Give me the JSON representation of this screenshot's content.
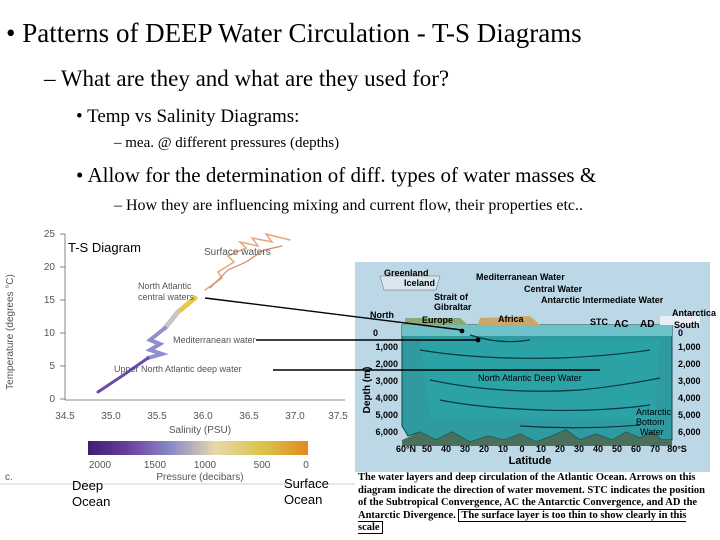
{
  "slide": {
    "title": "Patterns of DEEP Water Circulation - T-S Diagrams",
    "q": "What are they and what are they used for?",
    "b1": "Temp vs Salinity Diagrams:",
    "b1_sub": "mea. @ different pressures (depths)",
    "b2": "Allow for the determination of diff. types of water masses &",
    "b2_sub": "How they are influencing mixing and current flow, their properties etc.."
  },
  "ts": {
    "label": "T-S Diagram",
    "ylabel": "Temperature (degrees °C)",
    "xlabel": "Salinity (PSU)",
    "yticks": [
      "25",
      "20",
      "15",
      "10",
      "5",
      "0"
    ],
    "xticks": [
      "34.5",
      "35.0",
      "35.5",
      "36.0",
      "36.5",
      "37.0",
      "37.5"
    ],
    "surface": "Surface waters",
    "nacw1": "North Atlantic",
    "nacw2": "central waters",
    "med": "Mediterranean water",
    "unadw": "Upper North Atlantic deep water",
    "pticks": [
      "2000",
      "1500",
      "1000",
      "500",
      "0"
    ],
    "plabel": "Pressure (decibars)",
    "corner": "c.",
    "deep1": "Deep",
    "deep2": "Ocean",
    "surf1": "Surface",
    "surf2": "Ocean"
  },
  "sec": {
    "greenland": "Greenland",
    "iceland": "Iceland",
    "medw": "Mediterranean Water",
    "gib1": "Strait of",
    "gib2": "Gibraltar",
    "cw": "Central Water",
    "aiw": "Antarctic Intermediate Water",
    "antarctica": "Antarctica",
    "north": "North",
    "europe": "Europe",
    "africa": "Africa",
    "stc": "STC",
    "ac": "AC",
    "ad": "AD",
    "south": "South",
    "depth": "Depth (m)",
    "ld": [
      "0",
      "1,000",
      "2,000",
      "3,000",
      "4,000",
      "5,000",
      "6,000"
    ],
    "rd": [
      "0",
      "1,000",
      "2,000",
      "3,000",
      "4,000",
      "5,000",
      "6,000"
    ],
    "nadw": "North Atlantic Deep Water",
    "abw1": "Antarctic",
    "abw2": "Bottom",
    "abw3": "Water",
    "lat": "Latitude",
    "lats": [
      "60°N",
      "50",
      "40",
      "30",
      "20",
      "10",
      "0",
      "10",
      "20",
      "30",
      "40",
      "50",
      "60",
      "70",
      "80°S"
    ]
  },
  "caption": {
    "text": "The water layers and deep circulation of the Atlantic Ocean. Arrows on this diagram indicate the direction of water movement. STC indicates the position of the Subtropical Convergence, AC the Antarctic Convergence, and AD the Antarctic Divergence.",
    "boxed": "The surface layer is too thin to show clearly in this scale"
  }
}
